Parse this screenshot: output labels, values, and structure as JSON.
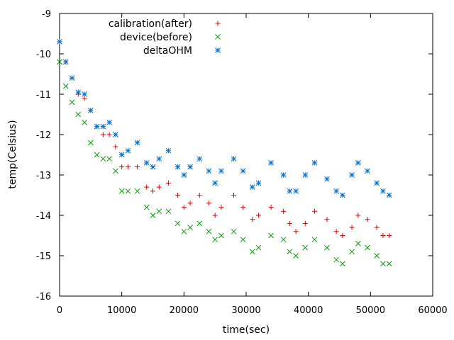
{
  "chart_data": {
    "type": "scatter",
    "xlabel": "time(sec)",
    "ylabel": "temp(Celsius)",
    "xlim": [
      0,
      60000
    ],
    "ylim": [
      -16,
      -9
    ],
    "x_ticks": [
      0,
      10000,
      20000,
      30000,
      40000,
      50000,
      60000
    ],
    "x_tick_labels": [
      "0",
      "10000",
      "20000",
      "30000",
      "40000",
      "50000",
      "60000"
    ],
    "y_ticks": [
      -16,
      -15,
      -14,
      -13,
      -12,
      -11,
      -10,
      -9
    ],
    "y_tick_labels": [
      "-16",
      "-15",
      "-14",
      "-13",
      "-12",
      "-11",
      "-10",
      "-9"
    ],
    "grid": false,
    "legend_position": "top-center",
    "series": [
      {
        "name": "calibration(after)",
        "marker": "+",
        "color": "#e00000",
        "x": [
          0,
          1000,
          2000,
          3000,
          4000,
          5000,
          6000,
          7000,
          8000,
          9000,
          10000,
          11000,
          12500,
          14000,
          15000,
          16000,
          17500,
          19000,
          20000,
          21000,
          22500,
          24000,
          25000,
          26000,
          28000,
          29500,
          31000,
          32000,
          34000,
          36000,
          37000,
          38000,
          39500,
          41000,
          43000,
          44500,
          45500,
          47000,
          48000,
          49500,
          51000,
          52000,
          53000
        ],
        "y": [
          -9.7,
          -10.2,
          -10.6,
          -11.0,
          -11.1,
          -11.4,
          -11.8,
          -12.0,
          -12.0,
          -12.3,
          -12.8,
          -12.8,
          -12.8,
          -13.3,
          -13.4,
          -13.3,
          -13.2,
          -13.5,
          -13.8,
          -13.7,
          -13.5,
          -13.7,
          -14.0,
          -13.8,
          -13.5,
          -13.8,
          -14.1,
          -14.0,
          -13.8,
          -13.9,
          -14.2,
          -14.4,
          -14.2,
          -13.9,
          -14.1,
          -14.4,
          -14.5,
          -14.3,
          -14.0,
          -14.1,
          -14.3,
          -14.5,
          -14.5
        ]
      },
      {
        "name": "device(before)",
        "marker": "x",
        "color": "#00a000",
        "x": [
          0,
          1000,
          2000,
          3000,
          4000,
          5000,
          6000,
          7000,
          8000,
          9000,
          10000,
          11000,
          12500,
          14000,
          15000,
          16000,
          17500,
          19000,
          20000,
          21000,
          22500,
          24000,
          25000,
          26000,
          28000,
          29500,
          31000,
          32000,
          34000,
          36000,
          37000,
          38000,
          39500,
          41000,
          43000,
          44500,
          45500,
          47000,
          48000,
          49500,
          51000,
          52000,
          53000
        ],
        "y": [
          -10.2,
          -10.8,
          -11.2,
          -11.5,
          -11.7,
          -12.2,
          -12.5,
          -12.6,
          -12.6,
          -12.9,
          -13.4,
          -13.4,
          -13.4,
          -13.8,
          -14.0,
          -13.9,
          -13.9,
          -14.2,
          -14.4,
          -14.3,
          -14.2,
          -14.4,
          -14.6,
          -14.5,
          -14.4,
          -14.6,
          -14.9,
          -14.8,
          -14.5,
          -14.6,
          -14.9,
          -15.0,
          -14.8,
          -14.6,
          -14.8,
          -15.1,
          -15.2,
          -14.9,
          -14.7,
          -14.8,
          -15.0,
          -15.2,
          -15.2
        ]
      },
      {
        "name": "deltaOHM",
        "marker": "*",
        "color": "#0070d0",
        "x": [
          0,
          1000,
          2000,
          3000,
          4000,
          5000,
          6000,
          7000,
          8000,
          9000,
          10000,
          11000,
          12500,
          14000,
          15000,
          16000,
          17500,
          19000,
          20000,
          21000,
          22500,
          24000,
          25000,
          26000,
          28000,
          29500,
          31000,
          32000,
          34000,
          36000,
          37000,
          38000,
          39500,
          41000,
          43000,
          44500,
          45500,
          47000,
          48000,
          49500,
          51000,
          52000,
          53000
        ],
        "y": [
          -9.7,
          -10.2,
          -10.6,
          -10.95,
          -11.0,
          -11.4,
          -11.8,
          -11.8,
          -11.7,
          -12.0,
          -12.5,
          -12.4,
          -12.2,
          -12.7,
          -12.8,
          -12.6,
          -12.4,
          -12.8,
          -13.0,
          -12.8,
          -12.6,
          -12.9,
          -13.2,
          -12.9,
          -12.6,
          -12.9,
          -13.3,
          -13.2,
          -12.7,
          -13.0,
          -13.4,
          -13.4,
          -13.0,
          -12.7,
          -13.1,
          -13.4,
          -13.5,
          -13.0,
          -12.7,
          -12.9,
          -13.2,
          -13.4,
          -13.5
        ]
      }
    ]
  }
}
